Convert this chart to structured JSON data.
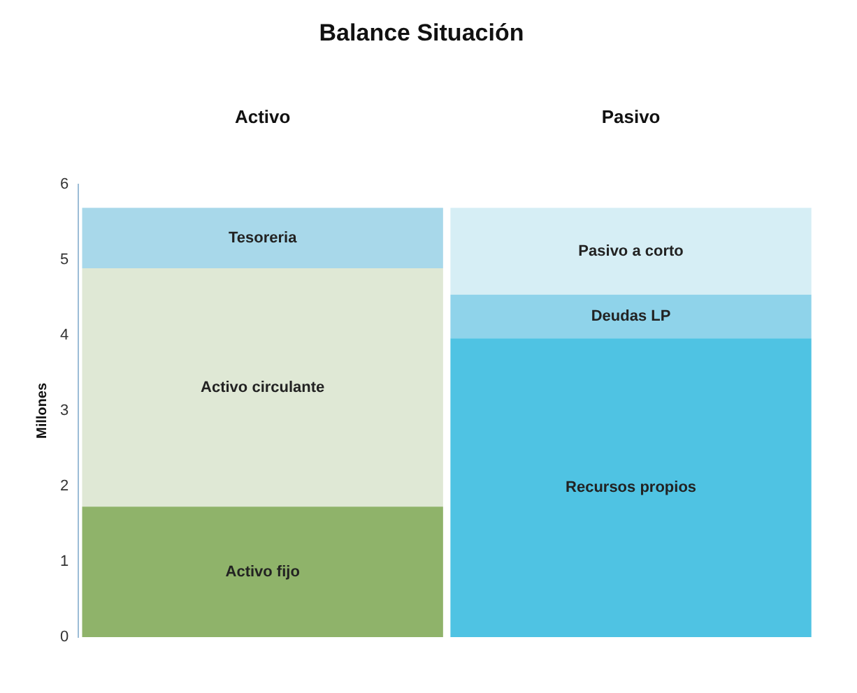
{
  "chart_data": {
    "type": "bar",
    "title": "Balance Situación",
    "ylabel": "Millones",
    "categories": [
      "Activo",
      "Pasivo"
    ],
    "stacked": true,
    "grid": false,
    "legend": false,
    "ylim": [
      0,
      6
    ],
    "yticks": [
      0,
      1,
      2,
      3,
      4,
      5,
      6
    ],
    "series": [
      {
        "name": "Activo fijo",
        "color": "#8fb36a",
        "values": [
          1.73,
          null
        ]
      },
      {
        "name": "Activo circulante",
        "color": "#dfe8d5",
        "values": [
          3.16,
          null
        ]
      },
      {
        "name": "Tesoreria",
        "color": "#a8d8ea",
        "values": [
          0.8,
          null
        ]
      },
      {
        "name": "Recursos propios",
        "color": "#4fc3e3",
        "values": [
          null,
          3.96
        ]
      },
      {
        "name": "Deudas LP",
        "color": "#8fd3ea",
        "values": [
          null,
          0.58
        ]
      },
      {
        "name": "Pasivo a corto",
        "color": "#d6eef5",
        "values": [
          null,
          1.15
        ]
      }
    ]
  }
}
